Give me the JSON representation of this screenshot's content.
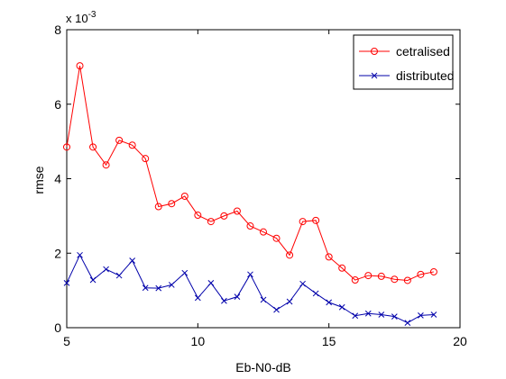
{
  "chart_data": {
    "type": "line",
    "title": "",
    "xlabel": "Eb-N0-dB",
    "ylabel": "rmse",
    "xlim": [
      5,
      20
    ],
    "ylim": [
      0,
      0.008
    ],
    "x_ticks": [
      "5",
      "10",
      "15",
      "20"
    ],
    "y_ticks": [
      "0",
      "2",
      "4",
      "6",
      "8"
    ],
    "y_exponent_base": "x 10",
    "y_exponent_power": "-3",
    "grid": false,
    "legend_position": "top-right",
    "series": [
      {
        "name": "cetralised",
        "color": "#ff0000",
        "marker": "circle",
        "x": [
          5,
          5.5,
          6,
          6.5,
          7,
          7.5,
          8,
          8.5,
          9,
          9.5,
          10,
          10.5,
          11,
          11.5,
          12,
          12.5,
          13,
          13.5,
          14,
          14.5,
          15,
          15.5,
          16,
          16.5,
          17,
          17.5,
          18,
          18.5,
          19
        ],
        "y": [
          0.00485,
          0.00703,
          0.00485,
          0.00437,
          0.00503,
          0.0049,
          0.00454,
          0.00325,
          0.00333,
          0.00353,
          0.00302,
          0.00285,
          0.003,
          0.00313,
          0.00273,
          0.00257,
          0.0024,
          0.00195,
          0.00285,
          0.00288,
          0.0019,
          0.0016,
          0.00128,
          0.0014,
          0.00138,
          0.0013,
          0.00127,
          0.00143,
          0.0015
        ]
      },
      {
        "name": "distributed",
        "color": "#0000aa",
        "marker": "x",
        "x": [
          5,
          5.5,
          6,
          6.5,
          7,
          7.5,
          8,
          8.5,
          9,
          9.5,
          10,
          10.5,
          11,
          11.5,
          12,
          12.5,
          13,
          13.5,
          14,
          14.5,
          15,
          15.5,
          16,
          16.5,
          17,
          17.5,
          18,
          18.5,
          19
        ],
        "y": [
          0.0012,
          0.00195,
          0.00128,
          0.00157,
          0.0014,
          0.0018,
          0.00107,
          0.00106,
          0.00115,
          0.00147,
          0.0008,
          0.0012,
          0.00072,
          0.00083,
          0.00143,
          0.00075,
          0.00048,
          0.0007,
          0.00118,
          0.00092,
          0.00068,
          0.00055,
          0.00032,
          0.00038,
          0.00035,
          0.0003,
          0.00013,
          0.00033,
          0.00035
        ]
      }
    ]
  }
}
